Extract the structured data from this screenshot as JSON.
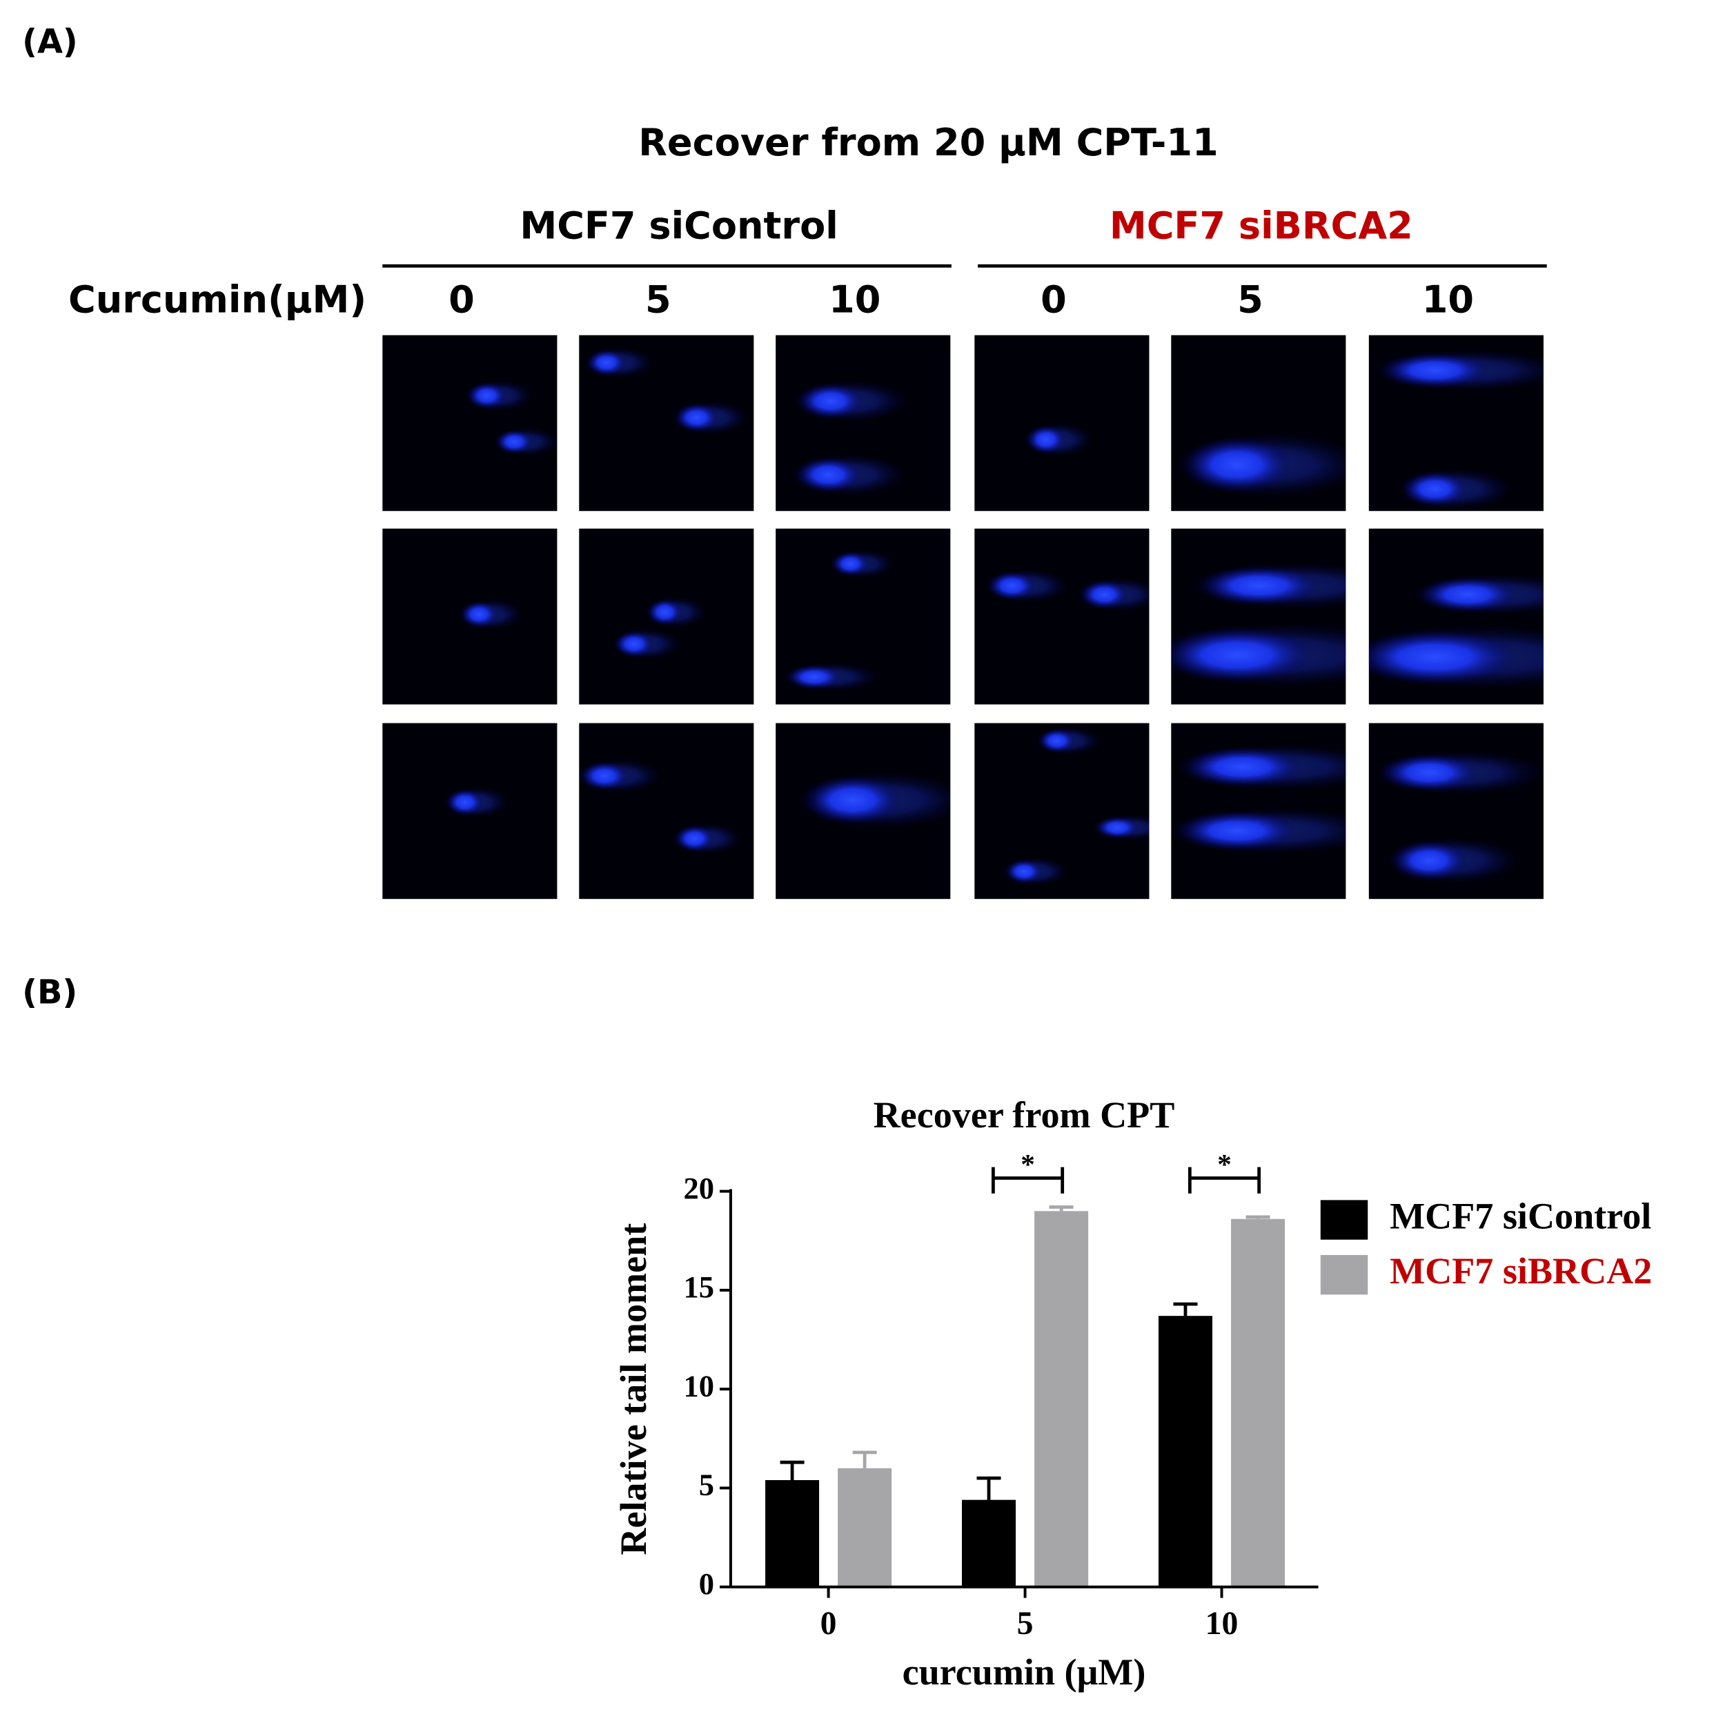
{
  "panel_labels": [
    "(A)",
    "(B)"
  ],
  "panel_a": {
    "title": "Recover from 20 µM CPT-11",
    "groups": [
      {
        "label": "MCF7 siControl",
        "color": "#000000"
      },
      {
        "label": "MCF7 siBRCA2",
        "color": "#c00000"
      }
    ],
    "dose_label": "Curcumin(µM)",
    "doses": [
      "0",
      "5",
      "10",
      "0",
      "5",
      "10"
    ]
  },
  "chart_data": {
    "type": "bar",
    "title": "Recover from CPT",
    "xlabel": "curcumin (μM)",
    "ylabel": "Relative tail moment",
    "categories": [
      "0",
      "5",
      "10"
    ],
    "series": [
      {
        "name": "MCF7 siControl",
        "color": "#000000",
        "label_color": "#000000",
        "values": [
          5.4,
          4.4,
          13.7
        ],
        "errors": [
          0.9,
          1.1,
          0.6
        ]
      },
      {
        "name": "MCF7 siBRCA2",
        "color": "#a6a6a8",
        "label_color": "#c00000",
        "values": [
          6.0,
          19.0,
          18.6
        ],
        "errors": [
          0.8,
          0.2,
          0.1
        ]
      }
    ],
    "ylim": [
      0,
      20
    ],
    "yticks": [
      0,
      5,
      10,
      15,
      20
    ],
    "significance": [
      {
        "label": "*",
        "category": "5"
      },
      {
        "label": "*",
        "category": "10"
      }
    ]
  }
}
